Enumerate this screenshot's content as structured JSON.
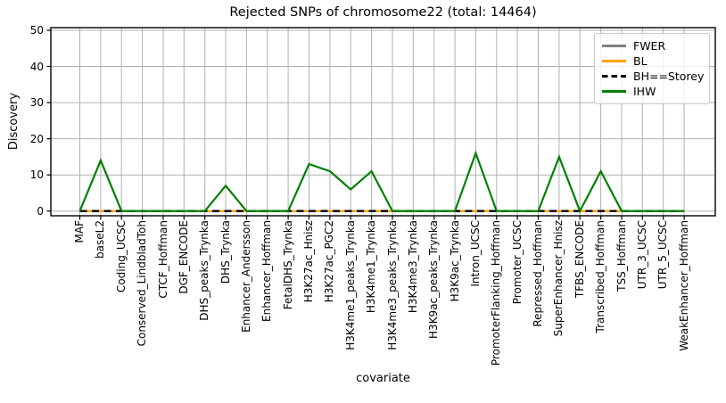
{
  "chart_data": {
    "type": "line",
    "title": "Rejected SNPs of chromosome22 (total: 14464)",
    "xlabel": "covariate",
    "ylabel": "Discovery",
    "ylim": [
      0,
      50
    ],
    "yticks": [
      0,
      10,
      20,
      30,
      40,
      50
    ],
    "grid": true,
    "legend_position": "upper right",
    "categories": [
      "MAF",
      "baseL2",
      "Coding_UCSC",
      "Conserved_LindbladToh",
      "CTCF_Hoffman",
      "DGF_ENCODE",
      "DHS_peaks_Trynka",
      "DHS_Trynka",
      "Enhancer_Andersson",
      "Enhancer_Hoffman",
      "FetalDHS_Trynka",
      "H3K27ac_Hnisz",
      "H3K27ac_PGC2",
      "H3K4me1_peaks_Trynka",
      "H3K4me1_Trynka",
      "H3K4me3_peaks_Trynka",
      "H3K4me3_Trynka",
      "H3K9ac_peaks_Trynka",
      "H3K9ac_Trynka",
      "Intron_UCSC",
      "PromoterFlanking_Hoffman",
      "Promoter_UCSC",
      "Repressed_Hoffman",
      "SuperEnhancer_Hnisz",
      "TFBS_ENCODE",
      "Transcribed_Hoffman",
      "TSS_Hoffman",
      "UTR_3_UCSC",
      "UTR_5_UCSC",
      "WeakEnhancer_Hoffman"
    ],
    "series": [
      {
        "name": "FWER",
        "color": "#7f7f7f",
        "style": "solid",
        "values": [
          0,
          0,
          0,
          0,
          0,
          0,
          0,
          0,
          0,
          0,
          0,
          0,
          0,
          0,
          0,
          0,
          0,
          0,
          0,
          0,
          0,
          0,
          0,
          0,
          0,
          0,
          0,
          0,
          0,
          0
        ]
      },
      {
        "name": "BL",
        "color": "#ffa500",
        "style": "solid",
        "values": [
          0,
          0,
          0,
          0,
          0,
          0,
          0,
          0,
          0,
          0,
          0,
          0,
          0,
          0,
          0,
          0,
          0,
          0,
          0,
          0,
          0,
          0,
          0,
          0,
          0,
          0,
          0,
          0,
          0,
          0
        ]
      },
      {
        "name": "BH==Storey",
        "color": "#000000",
        "style": "dashed",
        "values": [
          0,
          0,
          0,
          0,
          0,
          0,
          0,
          0,
          0,
          0,
          0,
          0,
          0,
          0,
          0,
          0,
          0,
          0,
          0,
          0,
          0,
          0,
          0,
          0,
          0,
          0,
          0,
          0,
          0,
          0
        ]
      },
      {
        "name": "IHW",
        "color": "#008000",
        "style": "solid",
        "values": [
          0,
          14,
          0,
          0,
          0,
          0,
          0,
          7,
          0,
          0,
          0,
          13,
          11,
          6,
          11,
          0,
          0,
          0,
          0,
          16,
          0,
          0,
          0,
          15,
          0,
          11,
          0,
          0,
          0,
          0
        ]
      }
    ],
    "colors": {
      "grid": "#b0b0b0",
      "axis": "#000000",
      "background": "#ffffff",
      "legend_border": "#cccccc"
    }
  }
}
